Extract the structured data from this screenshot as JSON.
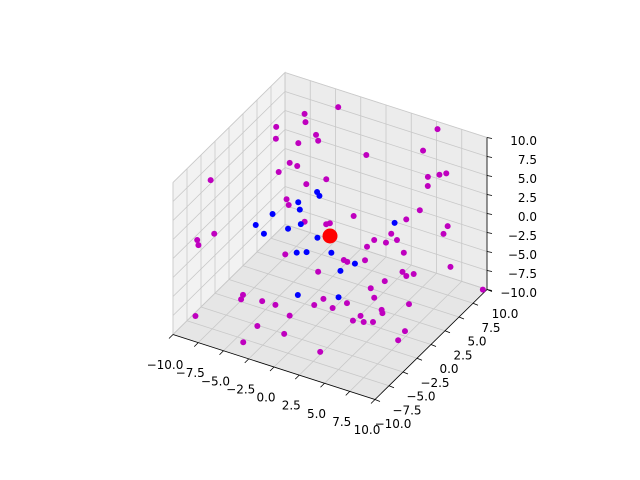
{
  "chart_data": {
    "type": "scatter3d",
    "grid": true,
    "xlim": [
      -10,
      10
    ],
    "ylim": [
      -10,
      10
    ],
    "zlim": [
      -10,
      10
    ],
    "xticks": [
      {
        "value": -10,
        "label": "−10.0"
      },
      {
        "value": -7.5,
        "label": "−7.5"
      },
      {
        "value": -5,
        "label": "−5.0"
      },
      {
        "value": -2.5,
        "label": "−2.5"
      },
      {
        "value": 0,
        "label": "0.0"
      },
      {
        "value": 2.5,
        "label": "2.5"
      },
      {
        "value": 5,
        "label": "5.0"
      },
      {
        "value": 7.5,
        "label": "7.5"
      },
      {
        "value": 10,
        "label": "10.0"
      }
    ],
    "yticks": [
      {
        "value": -10,
        "label": "−10.0"
      },
      {
        "value": -7.5,
        "label": "−7.5"
      },
      {
        "value": -5,
        "label": "−5.0"
      },
      {
        "value": -2.5,
        "label": "−2.5"
      },
      {
        "value": 0,
        "label": "0.0"
      },
      {
        "value": 2.5,
        "label": "2.5"
      },
      {
        "value": 5,
        "label": "5.0"
      },
      {
        "value": 7.5,
        "label": "7.5"
      },
      {
        "value": 10,
        "label": "10.0"
      }
    ],
    "zticks": [
      {
        "value": -10,
        "label": "−10.0"
      },
      {
        "value": -7.5,
        "label": "−7.5"
      },
      {
        "value": -5,
        "label": "−5.0"
      },
      {
        "value": -2.5,
        "label": "−2.5"
      },
      {
        "value": 0,
        "label": "0.0"
      },
      {
        "value": 2.5,
        "label": "2.5"
      },
      {
        "value": 5,
        "label": "5.0"
      },
      {
        "value": 7.5,
        "label": "7.5"
      },
      {
        "value": 10,
        "label": "10.0"
      }
    ],
    "series": [
      {
        "color": "#bf00bf",
        "marker_size": 6,
        "x": [
          -3.4,
          -5.4,
          -7.1,
          -4.7,
          5.1,
          -6.8,
          -4.1,
          -4.8,
          -3.5,
          0.6,
          4.5,
          -5.1,
          -4.3,
          -5.8,
          -1.7,
          -9.1,
          6.8,
          6.4,
          5.7,
          5.8,
          -3.4,
          -4.3,
          -3.7,
          5.9,
          5.0,
          1.4,
          -2.4,
          -0.6,
          -0.4,
          8.6,
          -8.8,
          -9.6,
          -9.7,
          4.4,
          8.3,
          3.6,
          4.1,
          5.3,
          3.0,
          -3.1,
          1.7,
          2.1,
          6.2,
          3.3,
          9.6,
          6.4,
          7.4,
          0.1,
          4.7,
          5.2,
          7.0,
          -4.9,
          -4.7,
          -3.0,
          1.4,
          5.1,
          -2.3,
          0.6,
          7.6,
          2.2,
          2.9,
          -8.0,
          -1.0,
          4.3,
          6.0,
          6.3,
          5.0,
          4.1,
          5.7,
          -3.2,
          -0.6,
          8.2,
          7.8,
          -3.6,
          2.3,
          9.7
        ],
        "y": [
          7.6,
          5.2,
          3.2,
          4.1,
          10.0,
          2.6,
          4.9,
          3.0,
          4.2,
          5.4,
          8.5,
          2.0,
          1.9,
          1.3,
          2.4,
          -4.9,
          8.5,
          8.0,
          7.2,
          7.0,
          1.9,
          0.0,
          -0.7,
          5.4,
          4.6,
          1.7,
          -0.2,
          0.4,
          0.7,
          5.5,
          -4.8,
          -6.4,
          -6.0,
          3.0,
          5.3,
          1.4,
          2.6,
          2.4,
          1.2,
          -2.4,
          -0.6,
          -0.7,
          2.0,
          0.3,
          4.2,
          1.4,
          1.6,
          -2.3,
          -1.2,
          0.4,
          1.0,
          -6.7,
          -7.4,
          -6.7,
          -3.7,
          -1.3,
          -5.6,
          -3.9,
          0.4,
          -3.5,
          -2.2,
          -9.6,
          -5.4,
          -2.3,
          -1.6,
          -2.0,
          -3.0,
          -3.3,
          -2.6,
          -7.2,
          -7.1,
          -1.4,
          -1.9,
          -9.0,
          -5.9,
          9.8
        ],
        "z": [
          10,
          10,
          9,
          10,
          9,
          8,
          8,
          8,
          8,
          7,
          7,
          6,
          6,
          5,
          5,
          7,
          5,
          5,
          5,
          4,
          4,
          3,
          3,
          2,
          1,
          2,
          1,
          1,
          1,
          1,
          0,
          0,
          -1,
          0,
          0,
          0,
          -1,
          0,
          -1,
          -2,
          -2,
          -2,
          -1,
          -2,
          -3,
          -3,
          -3,
          -3,
          -4,
          -4,
          -3,
          -5,
          -5,
          -5,
          -5,
          -5,
          -6,
          -6,
          -6,
          -6,
          -6,
          -7,
          -7,
          -7,
          -6,
          -6,
          -7,
          -7,
          -7,
          -8,
          -8,
          -8,
          -9,
          -9,
          -10,
          -10
        ]
      },
      {
        "color": "#0000ff",
        "marker_size": 6,
        "x": [
          -3.2,
          -2.0,
          -2.1,
          -4.8,
          -3.1,
          -5.8,
          -5.1,
          -3.1,
          -2.5,
          4.4,
          -0.8,
          -1.8,
          -1.1,
          0.8,
          2.8,
          1.7,
          -0.8,
          2.4
        ],
        "y": [
          0.1,
          1.3,
          1.9,
          -1.6,
          0.2,
          -2.8,
          -2.6,
          -1.9,
          -0.7,
          3.6,
          -0.8,
          -2.7,
          -2.2,
          -1.2,
          -0.6,
          -1.2,
          -4.3,
          -2.8
        ],
        "z": [
          3,
          4,
          3,
          2,
          2,
          1,
          0,
          1,
          1,
          1,
          0,
          -1,
          -1,
          -1,
          -2,
          -3,
          -5,
          -5
        ]
      },
      {
        "color": "#ff0000",
        "marker_size": 15,
        "x": [
          0
        ],
        "y": [
          0
        ],
        "z": [
          0
        ]
      }
    ]
  }
}
